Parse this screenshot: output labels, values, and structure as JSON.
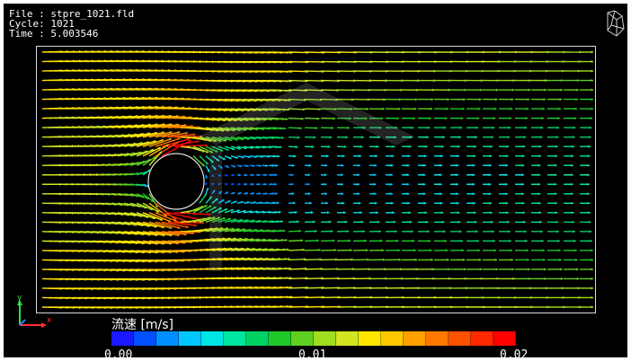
{
  "header": {
    "file_line": "File : stpre_1021.fld",
    "cycle_line": "Cycle: 1021",
    "time_line": "Time : 5.003546"
  },
  "legend": {
    "title": "流速 [m/s]",
    "ticks": [
      "0.00",
      "0.01",
      "0.02"
    ],
    "range": [
      0.0,
      0.02
    ],
    "colormap": [
      "#1a1aff",
      "#0050ff",
      "#0090ff",
      "#00c8ff",
      "#00e6e6",
      "#00e6a0",
      "#00d264",
      "#20c828",
      "#60d020",
      "#a0dc20",
      "#d2e620",
      "#ffe600",
      "#ffc800",
      "#ffa000",
      "#ff7800",
      "#ff5000",
      "#ff2800",
      "#ff0000"
    ]
  },
  "axes": {
    "y_label": "y",
    "x_label": "x"
  },
  "icons": {
    "orientation": "wireframe-cube-icon"
  },
  "flow": {
    "max_velocity": 0.02,
    "inflow_velocity": 0.0125
  }
}
